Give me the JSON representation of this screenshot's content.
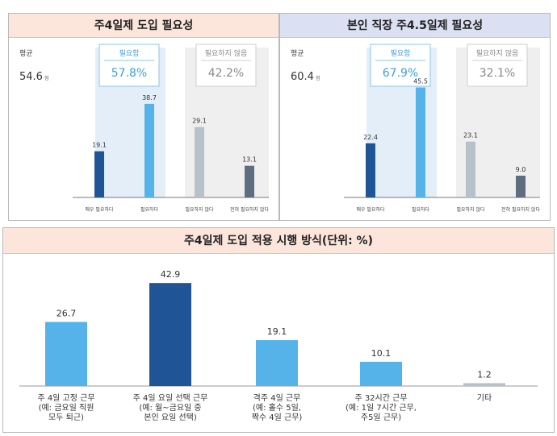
{
  "chart_data": [
    {
      "type": "bar",
      "title": "주4일제 도입 필요성",
      "avg_label": "평균",
      "avg_value": "54.6",
      "avg_unit": "점",
      "groups": [
        {
          "label": "필요함",
          "value": "57.8%"
        },
        {
          "label": "필요하지 않음",
          "value": "42.2%"
        }
      ],
      "categories": [
        "매우 필요하다",
        "필요하다",
        "필요하지 않다",
        "전혀 필요하지 않다"
      ],
      "values": [
        19.1,
        38.7,
        29.1,
        13.1
      ],
      "value_labels": [
        "19.1",
        "38.7",
        "29.1",
        "13.1"
      ],
      "ylim": [
        0,
        50
      ],
      "colors": [
        "#1f5597",
        "#55b3ea",
        "#b7c1c9",
        "#5f6e7e"
      ]
    },
    {
      "type": "bar",
      "title": "본인 직장 주4.5일제 필요성",
      "avg_label": "평균",
      "avg_value": "60.4",
      "avg_unit": "점",
      "groups": [
        {
          "label": "필요함",
          "value": "67.9%"
        },
        {
          "label": "필요하지 않음",
          "value": "32.1%"
        }
      ],
      "categories": [
        "매우 필요하다",
        "필요하다",
        "필요하지 않다",
        "전혀 필요하지 않다"
      ],
      "values": [
        22.4,
        45.5,
        23.1,
        9.0
      ],
      "value_labels": [
        "22.4",
        "45.5",
        "23.1",
        "9.0"
      ],
      "ylim": [
        0,
        50
      ],
      "colors": [
        "#1f5597",
        "#55b3ea",
        "#b7c1c9",
        "#5f6e7e"
      ]
    },
    {
      "type": "bar",
      "title": "주4일제 도입 적용 시행 방식(단위: %)",
      "categories": [
        [
          "주 4일 고정 근무",
          "(예: 금요일 직원",
          "모두 퇴근)"
        ],
        [
          "주 4일 요일 선택 근무",
          "(예: 월~금요일 중",
          "본인 요일 선택)"
        ],
        [
          "격주 4일 근무",
          "(예: 홀수 5일,",
          "짝수 4일 근무)"
        ],
        [
          "주 32시간 근무",
          "(예: 1일 7시간 근무,",
          "주5일 근무)"
        ],
        [
          "기타"
        ]
      ],
      "values": [
        26.7,
        42.9,
        19.1,
        10.1,
        1.2
      ],
      "value_labels": [
        "26.7",
        "42.9",
        "19.1",
        "10.1",
        "1.2"
      ],
      "ylim": [
        0,
        50
      ],
      "colors": [
        "#55b3ea",
        "#1f5597",
        "#55b3ea",
        "#55b3ea",
        "#b7c1c9"
      ]
    }
  ],
  "colors": {
    "header_left": "#fce6dc",
    "header_right": "#dbe1f3",
    "header_bottom": "#fce6dc",
    "need_zone": "#e3eef9",
    "noneed_zone": "#efefef",
    "need_text": "#3d9fe0",
    "noneed_text": "#8a8a8a"
  }
}
